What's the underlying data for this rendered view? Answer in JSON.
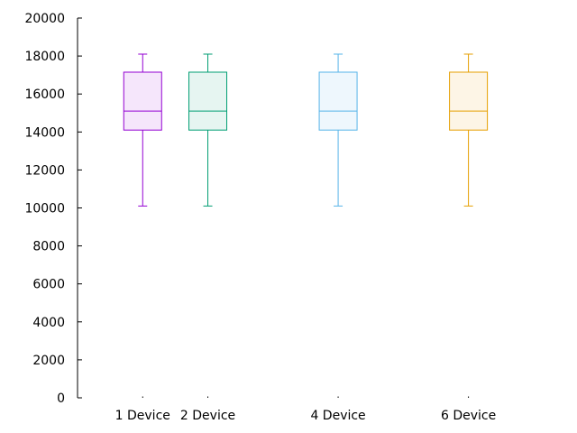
{
  "chart_data": {
    "type": "boxplot",
    "title": "",
    "xlabel": "",
    "ylabel": "",
    "ylim": [
      0,
      20000
    ],
    "yticks": [
      0,
      2000,
      4000,
      6000,
      8000,
      10000,
      12000,
      14000,
      16000,
      18000,
      20000
    ],
    "ytick_labels": [
      "0",
      "2000",
      "4000",
      "6000",
      "8000",
      "10000",
      "12000",
      "14000",
      "16000",
      "18000",
      "20000"
    ],
    "x_positions": [
      1,
      2,
      4,
      6
    ],
    "xlim": [
      0,
      7.5
    ],
    "categories": [
      "1 Device",
      "2 Device",
      "4 Device",
      "6 Device"
    ],
    "boxes": [
      {
        "category": "1 Device",
        "x": 1,
        "whisker_low": 10100,
        "q1": 14100,
        "median": 15100,
        "q3": 17150,
        "whisker_high": 18100,
        "color": "#9400d3",
        "fill": "#f5e6fb"
      },
      {
        "category": "2 Device",
        "x": 2,
        "whisker_low": 10100,
        "q1": 14100,
        "median": 15100,
        "q3": 17150,
        "whisker_high": 18100,
        "color": "#009e73",
        "fill": "#e6f5f1"
      },
      {
        "category": "4 Device",
        "x": 4,
        "whisker_low": 10100,
        "q1": 14100,
        "median": 15100,
        "q3": 17150,
        "whisker_high": 18100,
        "color": "#56b4e9",
        "fill": "#eef7fd"
      },
      {
        "category": "6 Device",
        "x": 6,
        "whisker_low": 10100,
        "q1": 14100,
        "median": 15100,
        "q3": 17150,
        "whisker_high": 18100,
        "color": "#e69f00",
        "fill": "#fdf5e6"
      }
    ],
    "grid": false,
    "legend": "none"
  }
}
